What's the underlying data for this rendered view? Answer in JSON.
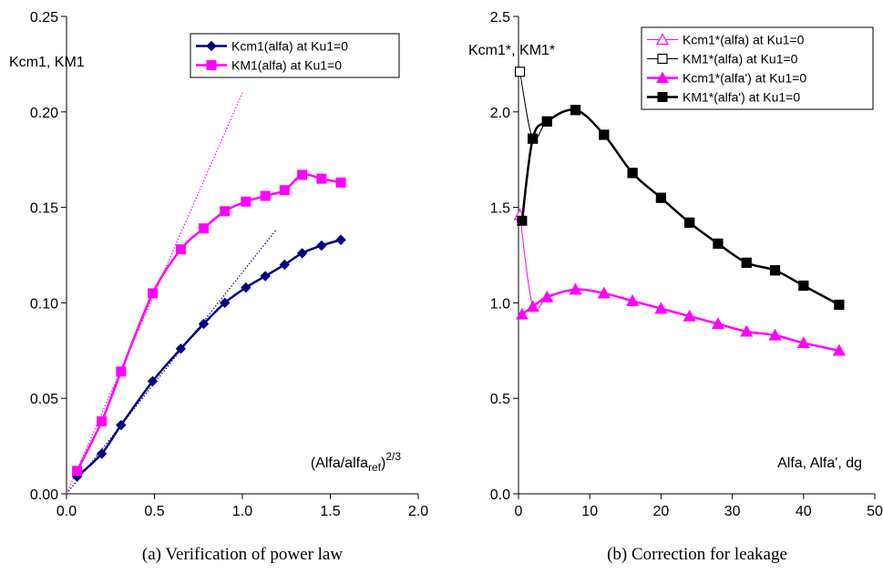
{
  "chart_data": [
    {
      "type": "line",
      "caption": "(a) Verification of power law",
      "ylabel": "Kcm1, KM1",
      "xlabel_base": "(Alfa/alfa",
      "xlabel_sub": "ref",
      "xlabel_tail": ")",
      "xlabel_sup": "2/3",
      "xlim": [
        0,
        2
      ],
      "ylim": [
        0,
        0.25
      ],
      "xticks": [
        "0.0",
        "0.5",
        "1.0",
        "1.5",
        "2.0"
      ],
      "yticks": [
        "0.00",
        "0.05",
        "0.10",
        "0.15",
        "0.20",
        "0.25"
      ],
      "legend_position": "top-right",
      "series": [
        {
          "name": "Kcm1(alfa) at Ku1=0",
          "color": "#000080",
          "marker": "diamond",
          "x": [
            0.06,
            0.2,
            0.31,
            0.49,
            0.65,
            0.78,
            0.9,
            1.02,
            1.13,
            1.24,
            1.34,
            1.45,
            1.56
          ],
          "y": [
            0.009,
            0.021,
            0.036,
            0.059,
            0.076,
            0.089,
            0.1,
            0.108,
            0.114,
            0.12,
            0.126,
            0.13,
            0.133
          ]
        },
        {
          "name": "KM1(alfa) at Ku1=0",
          "color": "#ff00ff",
          "marker": "square",
          "x": [
            0.06,
            0.2,
            0.31,
            0.49,
            0.65,
            0.78,
            0.9,
            1.02,
            1.13,
            1.24,
            1.34,
            1.45,
            1.56
          ],
          "y": [
            0.012,
            0.038,
            0.064,
            0.105,
            0.128,
            0.139,
            0.148,
            0.153,
            0.156,
            0.159,
            0.167,
            0.165,
            0.163
          ]
        }
      ],
      "trend_lines": [
        {
          "color": "#000080",
          "x": [
            0,
            1.19
          ],
          "y": [
            0,
            0.138
          ]
        },
        {
          "color": "#ff00ff",
          "x": [
            0,
            1.0
          ],
          "y": [
            0,
            0.21
          ]
        }
      ]
    },
    {
      "type": "line",
      "caption": "(b) Correction for leakage",
      "ylabel": "Kcm1*, KM1*",
      "xlabel": "Alfa, Alfa', dg",
      "xlim": [
        0,
        50
      ],
      "ylim": [
        0,
        2.5
      ],
      "xticks": [
        "0",
        "10",
        "20",
        "30",
        "40",
        "50"
      ],
      "yticks": [
        "0.0",
        "0.5",
        "1.0",
        "1.5",
        "2.0",
        "2.5"
      ],
      "legend_position": "top-right",
      "series": [
        {
          "name": "Kcm1*(alfa) at Ku1=0",
          "color": "#ff00ff",
          "marker": "triangle-open",
          "line_width": 1,
          "x": [
            0.2,
            2,
            4,
            8,
            12,
            16,
            20,
            24,
            28,
            32,
            36,
            40,
            45
          ],
          "y": [
            1.46,
            0.98,
            1.03,
            1.07,
            1.05,
            1.01,
            0.97,
            0.93,
            0.89,
            0.85,
            0.83,
            0.79,
            0.75
          ]
        },
        {
          "name": "KM1*(alfa) at Ku1=0",
          "color": "#000000",
          "marker": "square-open",
          "line_width": 1,
          "x": [
            0.2,
            2,
            4,
            8,
            12,
            16,
            20,
            24,
            28,
            32,
            36,
            40,
            45
          ],
          "y": [
            2.21,
            1.86,
            1.95,
            2.01,
            1.88,
            1.68,
            1.55,
            1.42,
            1.31,
            1.21,
            1.17,
            1.09,
            0.99
          ]
        },
        {
          "name": "Kcm1*(alfa') at Ku1=0",
          "color": "#ff00ff",
          "marker": "triangle",
          "line_width": 2.5,
          "x": [
            0.5,
            2,
            4,
            8,
            12,
            16,
            20,
            24,
            28,
            32,
            36,
            40,
            45
          ],
          "y": [
            0.94,
            0.98,
            1.03,
            1.07,
            1.05,
            1.01,
            0.97,
            0.93,
            0.89,
            0.85,
            0.83,
            0.79,
            0.75
          ]
        },
        {
          "name": "KM1*(alfa') at Ku1=0",
          "color": "#000000",
          "marker": "square",
          "line_width": 2.5,
          "x": [
            0.5,
            2,
            4,
            8,
            12,
            16,
            20,
            24,
            28,
            32,
            36,
            40,
            45
          ],
          "y": [
            1.43,
            1.86,
            1.95,
            2.01,
            1.88,
            1.68,
            1.55,
            1.42,
            1.31,
            1.21,
            1.17,
            1.09,
            0.99
          ]
        }
      ]
    }
  ]
}
